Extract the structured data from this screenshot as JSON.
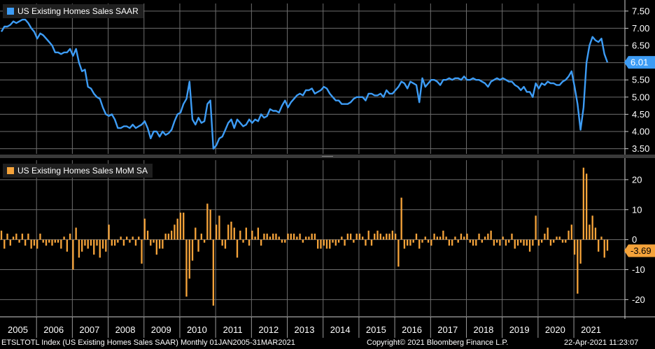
{
  "colors": {
    "background": "#000000",
    "grid": "#6e6e6e",
    "sales_line": "#3d9cf5",
    "mom_bars": "#f5a33a",
    "last_label_text_top": "#ffffff",
    "last_label_text_bottom": "#000000"
  },
  "chart_data": [
    {
      "type": "line",
      "legend": "US Existing Homes Sales SAAR",
      "ylim": [
        3.35,
        7.72
      ],
      "yticks": [
        3.5,
        4.0,
        4.5,
        5.0,
        5.5,
        6.0,
        6.5,
        7.0,
        7.5
      ],
      "ytick_labels": [
        "3.50",
        "4.00",
        "4.50",
        "5.00",
        "5.50",
        "6.00",
        "6.50",
        "7.00",
        "7.50"
      ],
      "last_value_label": "6.01",
      "x_start": "2005-01",
      "x_end": "2021-03",
      "grid": true,
      "series": [
        {
          "values": [
            6.9,
            7.05,
            7.05,
            7.1,
            7.2,
            7.15,
            7.2,
            7.25,
            7.25,
            7.15,
            7.0,
            6.9,
            6.7,
            6.85,
            6.8,
            6.7,
            6.6,
            6.5,
            6.3,
            6.3,
            6.25,
            6.3,
            6.3,
            6.4,
            6.2,
            6.4,
            6.0,
            5.75,
            5.8,
            5.3,
            5.25,
            5.1,
            5.0,
            4.95,
            4.7,
            4.5,
            4.45,
            4.5,
            4.35,
            4.1,
            4.1,
            4.15,
            4.15,
            4.1,
            4.2,
            4.1,
            4.15,
            4.2,
            4.3,
            4.1,
            3.8,
            4.0,
            4.0,
            3.85,
            4.0,
            3.9,
            3.95,
            4.05,
            4.3,
            4.5,
            4.55,
            4.8,
            4.95,
            5.45,
            4.35,
            4.2,
            4.4,
            4.25,
            4.3,
            4.8,
            4.9,
            3.5,
            3.6,
            3.8,
            3.85,
            4.05,
            4.25,
            4.35,
            4.1,
            4.35,
            4.25,
            4.15,
            4.2,
            4.35,
            4.25,
            4.35,
            4.3,
            4.5,
            4.4,
            4.45,
            4.65,
            4.6,
            4.6,
            4.55,
            4.75,
            4.9,
            4.7,
            4.85,
            4.95,
            5.05,
            5.1,
            5.05,
            5.2,
            5.2,
            5.25,
            5.1,
            5.15,
            5.2,
            5.3,
            5.25,
            5.1,
            5.0,
            4.9,
            4.9,
            4.8,
            4.8,
            4.8,
            4.85,
            4.95,
            5.0,
            5.0,
            5.0,
            4.9,
            5.1,
            5.1,
            5.05,
            5.05,
            5.1,
            5.0,
            5.2,
            5.1,
            5.1,
            5.2,
            5.3,
            5.45,
            5.4,
            5.25,
            5.45,
            5.4,
            5.35,
            4.85,
            5.55,
            5.3,
            5.4,
            5.5,
            5.5,
            5.45,
            5.35,
            5.5,
            5.5,
            5.55,
            5.5,
            5.55,
            5.55,
            5.5,
            5.6,
            5.5,
            5.5,
            5.55,
            5.5,
            5.5,
            5.45,
            5.4,
            5.3,
            5.45,
            5.5,
            5.55,
            5.5,
            5.55,
            5.5,
            5.45,
            5.45,
            5.35,
            5.3,
            5.2,
            5.3,
            5.15,
            5.15,
            5.0,
            5.4,
            5.25,
            5.4,
            5.35,
            5.45,
            5.4,
            5.4,
            5.35,
            5.35,
            5.45,
            5.5,
            5.6,
            5.75,
            5.3,
            4.8,
            4.05,
            4.7,
            6.0,
            6.5,
            6.75,
            6.65,
            6.6,
            6.7,
            6.25,
            6.01
          ]
        }
      ]
    },
    {
      "type": "bar",
      "legend": "US Existing Homes Sales MoM SA",
      "ylim": [
        -25.5,
        26.5
      ],
      "yticks": [
        -20,
        -10,
        0,
        10,
        20
      ],
      "ytick_labels": [
        "-20",
        "-10",
        "0",
        "10",
        "20"
      ],
      "last_value_label": "-3.69",
      "x_start": "2005-01",
      "x_end": "2021-03",
      "grid": true,
      "series": [
        {
          "values": [
            3,
            -3,
            2,
            -2,
            1,
            2,
            -1,
            2,
            -2,
            2,
            -3,
            -2,
            -3,
            2,
            -1,
            -2,
            -1,
            -2,
            -1,
            -1,
            -3,
            1,
            -4,
            2,
            -10,
            4,
            -6,
            -4,
            -2,
            -3,
            -2,
            -5,
            -2,
            -6,
            -3,
            -4,
            5,
            -2,
            -2,
            -1,
            1,
            -2,
            1,
            -1,
            1,
            -2,
            1,
            -8,
            7,
            3,
            -2,
            -1,
            -5,
            -3,
            -3,
            2,
            2,
            3,
            5,
            7,
            9,
            9,
            -19,
            -13,
            -7,
            4,
            -4,
            2,
            -1,
            12,
            10,
            -22,
            5,
            8,
            -2,
            -3,
            5,
            6,
            4,
            -6,
            3,
            -1,
            4,
            -2,
            3,
            1,
            4,
            -2,
            2,
            2,
            1,
            2,
            2,
            1,
            -1,
            -1,
            2,
            2,
            2,
            1,
            2,
            -1,
            1,
            1,
            2,
            2,
            -3,
            -3,
            -2,
            -3,
            -3,
            -1,
            -2,
            -1,
            1,
            -2,
            2,
            2,
            -1,
            2,
            2,
            1,
            -2,
            3,
            -2,
            2,
            3,
            2,
            1,
            2,
            2,
            3,
            2,
            -9,
            14,
            -3,
            -2,
            -2,
            -1,
            2,
            -3,
            -1,
            1,
            -1,
            -2,
            2,
            1,
            1,
            3,
            1,
            -2,
            -2,
            1,
            -1,
            2,
            1,
            2,
            -1,
            -2,
            -2,
            2,
            -1,
            1,
            2,
            3,
            -2,
            -1,
            -2,
            1,
            -2,
            -1,
            2,
            -3,
            -2,
            -1,
            -2,
            -2,
            -4,
            -2,
            8,
            -2,
            -1,
            2,
            4,
            -2,
            -1,
            1,
            1,
            -1,
            -1,
            3,
            5,
            -5,
            -18,
            -8,
            24,
            22,
            5,
            8,
            4,
            -4,
            1,
            -6,
            -3.69
          ]
        }
      ]
    }
  ],
  "x_axis_years": [
    "2005",
    "2006",
    "2007",
    "2008",
    "2009",
    "2010",
    "2011",
    "2012",
    "2013",
    "2014",
    "2015",
    "2016",
    "2017",
    "2018",
    "2019",
    "2020",
    "2021"
  ],
  "footer": {
    "left": "ETSLTOTL Index (US Existing Homes Sales SAAR)  Monthly 01JAN2005-31MAR2021",
    "center": "Copyright© 2021 Bloomberg Finance L.P.",
    "right": "22-Apr-2021 11:23:07"
  }
}
